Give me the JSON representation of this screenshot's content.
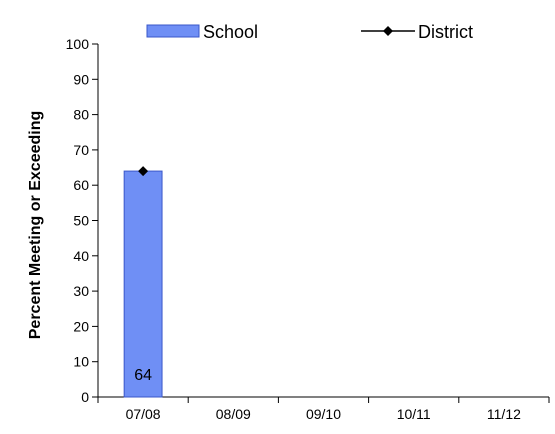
{
  "chart_data": {
    "type": "bar",
    "categories": [
      "07/08",
      "08/09",
      "09/10",
      "10/11",
      "11/12"
    ],
    "series": [
      {
        "name": "School",
        "type": "bar",
        "values": [
          64,
          null,
          null,
          null,
          null
        ],
        "color": "#6f8ff5"
      },
      {
        "name": "District",
        "type": "line",
        "values": [
          64,
          null,
          null,
          null,
          null
        ],
        "color": "#000000",
        "marker": "diamond"
      }
    ],
    "data_labels": [
      "64",
      "",
      "",
      "",
      ""
    ],
    "ylabel": "Percent Meeting or Exceeding",
    "ylim": [
      0,
      100
    ],
    "yticks": [
      0,
      10,
      20,
      30,
      40,
      50,
      60,
      70,
      80,
      90,
      100
    ],
    "grid": false,
    "legend_position": "top"
  },
  "colors": {
    "bar_fill": "#6f8ff5",
    "bar_stroke": "#3a57c9",
    "line": "#000000"
  }
}
